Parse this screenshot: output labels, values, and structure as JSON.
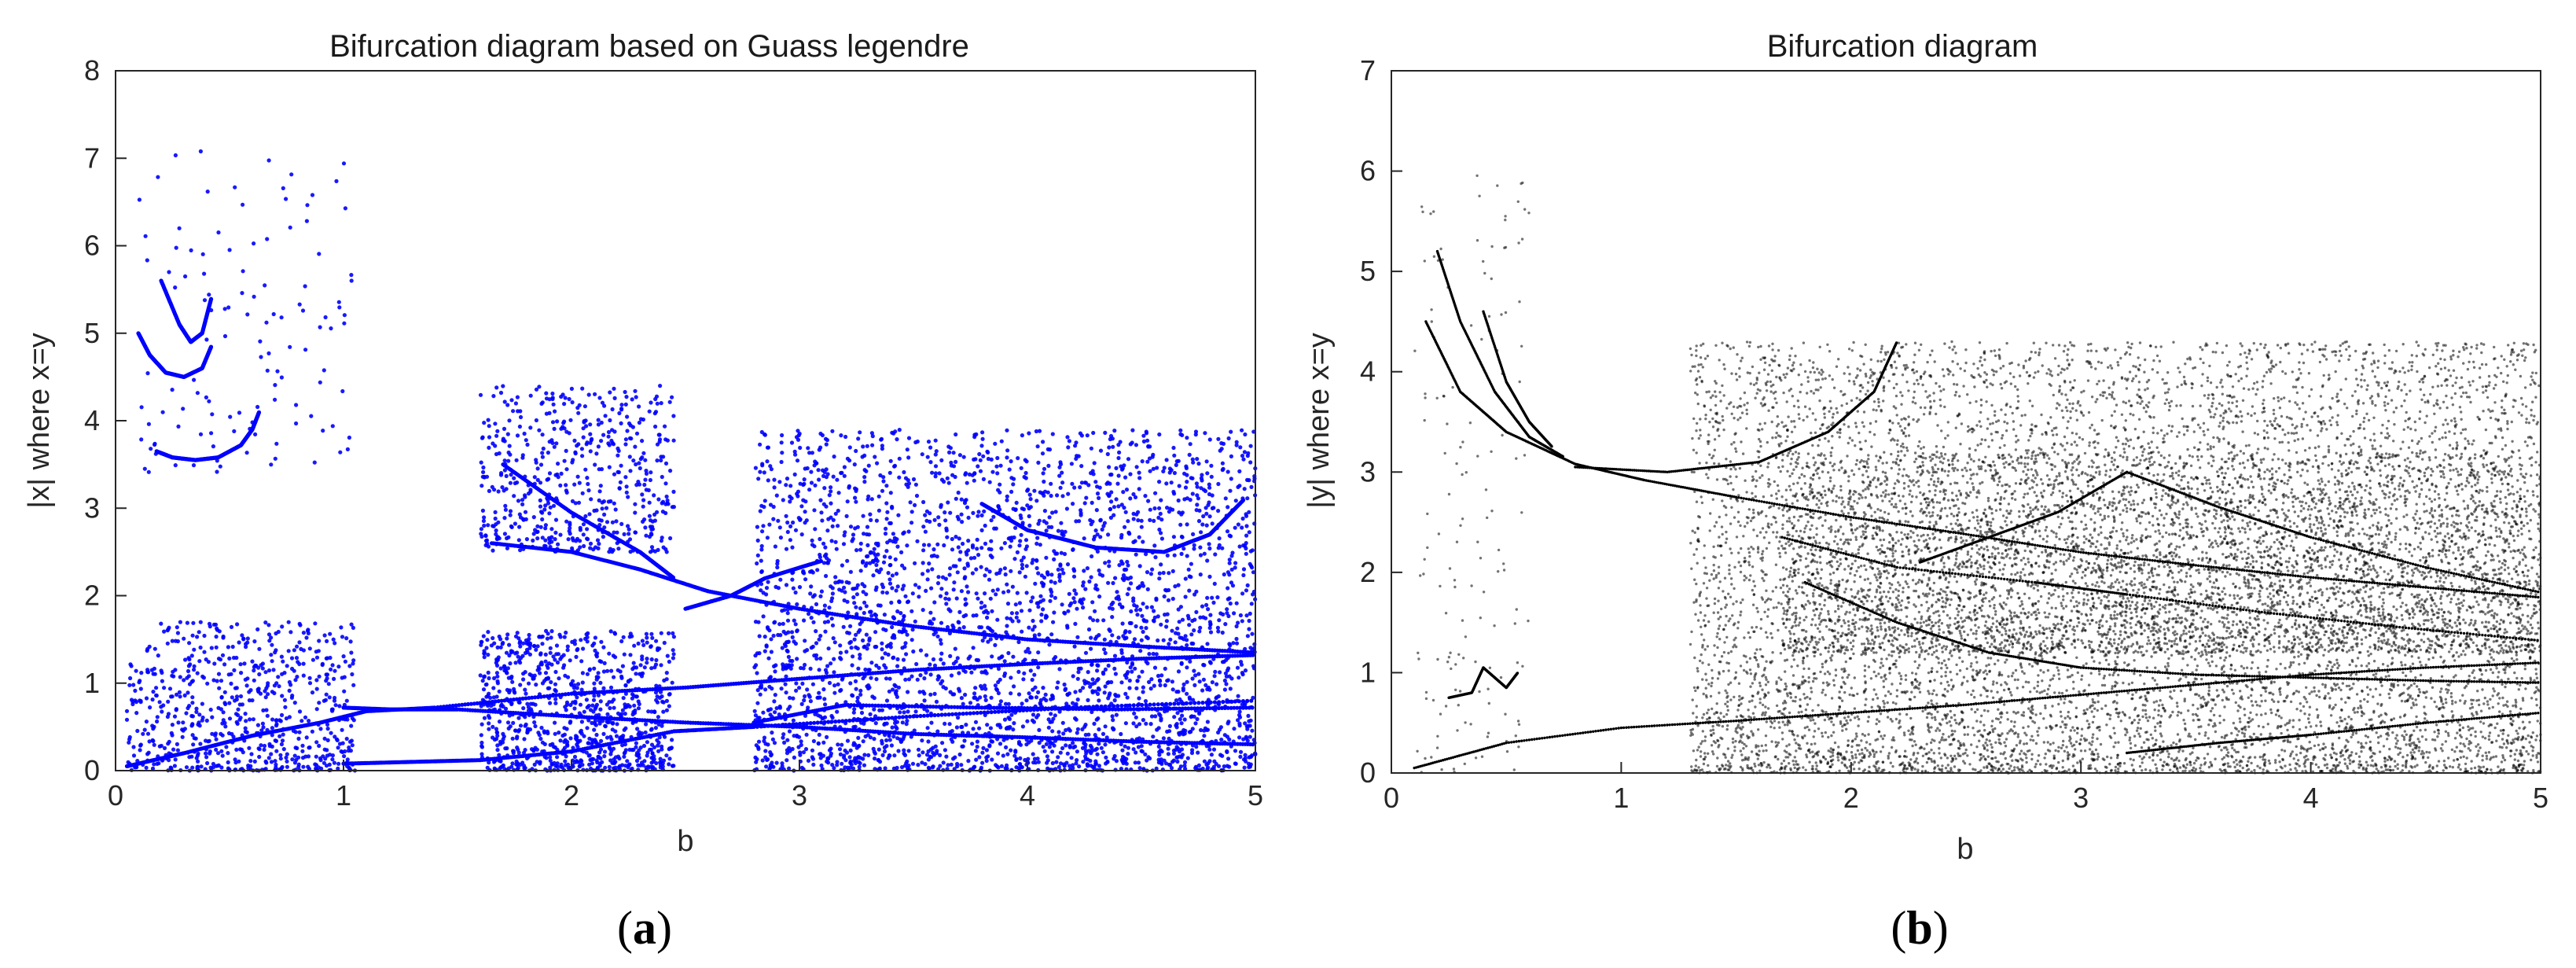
{
  "chart_data": [
    {
      "panel": "(a)",
      "caption": {
        "open": "(",
        "letter": "a",
        "close": ")"
      },
      "type": "scatter",
      "title": "Bifurcation diagram based on Guass legendre",
      "xlabel": "b",
      "ylabel": "|x| where x=y",
      "xlim": [
        0,
        5
      ],
      "ylim": [
        0,
        8
      ],
      "xticks": [
        0,
        1,
        2,
        3,
        4,
        5
      ],
      "yticks": [
        0,
        1,
        2,
        3,
        4,
        5,
        6,
        7,
        8
      ],
      "grid": false,
      "marker_color": "#0000ff",
      "series": [
        {
          "curves": [
            {
              "points": [
                [
                  0.18,
                  3.65
                ],
                [
                  0.25,
                  3.58
                ],
                [
                  0.35,
                  3.55
                ],
                [
                  0.45,
                  3.58
                ],
                [
                  0.55,
                  3.72
                ],
                [
                  0.6,
                  3.9
                ],
                [
                  0.63,
                  4.1
                ]
              ]
            },
            {
              "points": [
                [
                  0.1,
                  5.0
                ],
                [
                  0.15,
                  4.75
                ],
                [
                  0.22,
                  4.55
                ],
                [
                  0.3,
                  4.5
                ],
                [
                  0.38,
                  4.6
                ],
                [
                  0.42,
                  4.85
                ]
              ]
            },
            {
              "points": [
                [
                  0.2,
                  5.6
                ],
                [
                  0.28,
                  5.1
                ],
                [
                  0.33,
                  4.9
                ],
                [
                  0.38,
                  5.0
                ],
                [
                  0.42,
                  5.4
                ]
              ]
            },
            {
              "points": [
                [
                  0.05,
                  0.05
                ],
                [
                  0.3,
                  0.2
                ],
                [
                  0.6,
                  0.4
                ],
                [
                  0.9,
                  0.55
                ],
                [
                  1.1,
                  0.68
                ],
                [
                  1.4,
                  0.72
                ],
                [
                  2.0,
                  0.88
                ],
                [
                  2.5,
                  0.95
                ],
                [
                  3.0,
                  1.05
                ],
                [
                  3.5,
                  1.15
                ],
                [
                  4.0,
                  1.22
                ],
                [
                  4.5,
                  1.28
                ],
                [
                  5.0,
                  1.32
                ]
              ]
            },
            {
              "points": [
                [
                  1.0,
                  0.72
                ],
                [
                  1.2,
                  0.7
                ],
                [
                  1.5,
                  0.7
                ],
                [
                  2.0,
                  0.62
                ],
                [
                  2.5,
                  0.55
                ],
                [
                  3.0,
                  0.5
                ],
                [
                  3.5,
                  0.42
                ],
                [
                  4.0,
                  0.38
                ],
                [
                  4.5,
                  0.33
                ],
                [
                  5.0,
                  0.3
                ]
              ]
            },
            {
              "points": [
                [
                  1.0,
                  0.08
                ],
                [
                  1.3,
                  0.1
                ],
                [
                  1.6,
                  0.12
                ],
                [
                  2.0,
                  0.22
                ],
                [
                  2.45,
                  0.45
                ],
                [
                  2.8,
                  0.5
                ],
                [
                  3.5,
                  0.62
                ],
                [
                  4.2,
                  0.72
                ],
                [
                  5.0,
                  0.8
                ]
              ]
            },
            {
              "points": [
                [
                  1.65,
                  2.6
                ],
                [
                  2.0,
                  2.5
                ],
                [
                  2.3,
                  2.3
                ],
                [
                  2.6,
                  2.05
                ],
                [
                  3.0,
                  1.85
                ],
                [
                  3.5,
                  1.65
                ],
                [
                  4.0,
                  1.5
                ],
                [
                  4.5,
                  1.42
                ],
                [
                  5.0,
                  1.35
                ]
              ]
            },
            {
              "points": [
                [
                  1.7,
                  3.5
                ],
                [
                  2.0,
                  2.95
                ],
                [
                  2.3,
                  2.5
                ],
                [
                  2.45,
                  2.2
                ]
              ]
            },
            {
              "points": [
                [
                  2.5,
                  1.85
                ],
                [
                  2.7,
                  2.0
                ],
                [
                  2.85,
                  2.2
                ],
                [
                  3.1,
                  2.4
                ]
              ]
            },
            {
              "points": [
                [
                  3.8,
                  3.05
                ],
                [
                  4.0,
                  2.75
                ],
                [
                  4.3,
                  2.55
                ],
                [
                  4.6,
                  2.5
                ],
                [
                  4.8,
                  2.7
                ],
                [
                  4.95,
                  3.1
                ]
              ]
            },
            {
              "points": [
                [
                  2.8,
                  0.55
                ],
                [
                  3.2,
                  0.75
                ],
                [
                  3.8,
                  0.72
                ],
                [
                  4.4,
                  0.7
                ],
                [
                  5.0,
                  0.72
                ]
              ]
            }
          ],
          "clouds": [
            {
              "x": [
                0.05,
                1.05
              ],
              "y": [
                0.0,
                1.7
              ],
              "density": 700
            },
            {
              "x": [
                1.6,
                2.45
              ],
              "y": [
                0.0,
                1.6
              ],
              "density": 900
            },
            {
              "x": [
                1.6,
                2.45
              ],
              "y": [
                2.5,
                4.4
              ],
              "density": 550
            },
            {
              "x": [
                2.8,
                5.0
              ],
              "y": [
                0.0,
                3.9
              ],
              "density": 3200
            },
            {
              "x": [
                0.1,
                1.05
              ],
              "y": [
                3.4,
                7.1
              ],
              "density": 120
            }
          ]
        }
      ]
    },
    {
      "panel": "(b)",
      "caption": {
        "open": "(",
        "letter": "b",
        "close": ")"
      },
      "type": "scatter",
      "title": "Bifurcation diagram",
      "xlabel": "b",
      "ylabel": "|y| where x=y",
      "xlim": [
        0,
        5
      ],
      "ylim": [
        0,
        7
      ],
      "xticks": [
        0,
        1,
        2,
        3,
        4,
        5
      ],
      "yticks": [
        0,
        1,
        2,
        3,
        4,
        5,
        6,
        7
      ],
      "grid": false,
      "marker_color": "#000000",
      "series": [
        {
          "curves": [
            {
              "points": [
                [
                  0.15,
                  4.5
                ],
                [
                  0.3,
                  3.8
                ],
                [
                  0.5,
                  3.4
                ],
                [
                  0.8,
                  3.08
                ],
                [
                  1.1,
                  2.92
                ],
                [
                  1.5,
                  2.75
                ],
                [
                  2.0,
                  2.55
                ],
                [
                  2.5,
                  2.38
                ],
                [
                  3.0,
                  2.2
                ],
                [
                  3.5,
                  2.07
                ],
                [
                  4.0,
                  1.95
                ],
                [
                  4.5,
                  1.85
                ],
                [
                  5.0,
                  1.75
                ]
              ]
            },
            {
              "points": [
                [
                  0.2,
                  5.2
                ],
                [
                  0.3,
                  4.5
                ],
                [
                  0.45,
                  3.8
                ],
                [
                  0.6,
                  3.35
                ],
                [
                  0.75,
                  3.15
                ]
              ]
            },
            {
              "points": [
                [
                  0.4,
                  4.6
                ],
                [
                  0.5,
                  3.9
                ],
                [
                  0.6,
                  3.5
                ],
                [
                  0.7,
                  3.25
                ]
              ]
            },
            {
              "points": [
                [
                  0.8,
                  3.05
                ],
                [
                  1.2,
                  3.0
                ],
                [
                  1.6,
                  3.1
                ],
                [
                  1.9,
                  3.4
                ],
                [
                  2.1,
                  3.8
                ],
                [
                  2.2,
                  4.3
                ]
              ]
            },
            {
              "points": [
                [
                  1.7,
                  2.35
                ],
                [
                  2.2,
                  2.05
                ],
                [
                  2.8,
                  1.9
                ],
                [
                  3.2,
                  1.78
                ],
                [
                  3.8,
                  1.6
                ],
                [
                  4.4,
                  1.45
                ],
                [
                  5.0,
                  1.32
                ]
              ]
            },
            {
              "points": [
                [
                  2.3,
                  2.1
                ],
                [
                  2.6,
                  2.35
                ],
                [
                  2.9,
                  2.6
                ],
                [
                  3.2,
                  3.0
                ],
                [
                  3.6,
                  2.65
                ],
                [
                  4.0,
                  2.35
                ],
                [
                  4.5,
                  2.05
                ],
                [
                  5.0,
                  1.8
                ]
              ]
            },
            {
              "points": [
                [
                  0.1,
                  0.05
                ],
                [
                  0.5,
                  0.3
                ],
                [
                  1.0,
                  0.45
                ],
                [
                  1.5,
                  0.52
                ],
                [
                  2.0,
                  0.6
                ],
                [
                  2.5,
                  0.68
                ],
                [
                  3.0,
                  0.78
                ],
                [
                  3.5,
                  0.88
                ],
                [
                  4.0,
                  0.98
                ],
                [
                  4.5,
                  1.05
                ],
                [
                  5.0,
                  1.1
                ]
              ]
            },
            {
              "points": [
                [
                  1.8,
                  1.9
                ],
                [
                  2.2,
                  1.5
                ],
                [
                  2.6,
                  1.2
                ],
                [
                  3.0,
                  1.05
                ],
                [
                  3.5,
                  0.98
                ],
                [
                  4.0,
                  0.95
                ],
                [
                  4.5,
                  0.92
                ],
                [
                  5.0,
                  0.9
                ]
              ]
            },
            {
              "points": [
                [
                  0.25,
                  0.75
                ],
                [
                  0.35,
                  0.8
                ],
                [
                  0.4,
                  1.05
                ],
                [
                  0.5,
                  0.85
                ],
                [
                  0.55,
                  1.0
                ]
              ]
            },
            {
              "points": [
                [
                  3.2,
                  0.2
                ],
                [
                  3.6,
                  0.3
                ],
                [
                  4.0,
                  0.38
                ],
                [
                  4.5,
                  0.5
                ],
                [
                  5.0,
                  0.6
                ]
              ]
            }
          ],
          "clouds": [
            {
              "x": [
                1.3,
                5.0
              ],
              "y": [
                0.0,
                4.3
              ],
              "density": 9000
            },
            {
              "x": [
                1.7,
                5.0
              ],
              "y": [
                1.2,
                3.2
              ],
              "density": 3500
            },
            {
              "x": [
                0.1,
                0.6
              ],
              "y": [
                0.0,
                6.0
              ],
              "density": 150
            }
          ]
        }
      ]
    }
  ]
}
